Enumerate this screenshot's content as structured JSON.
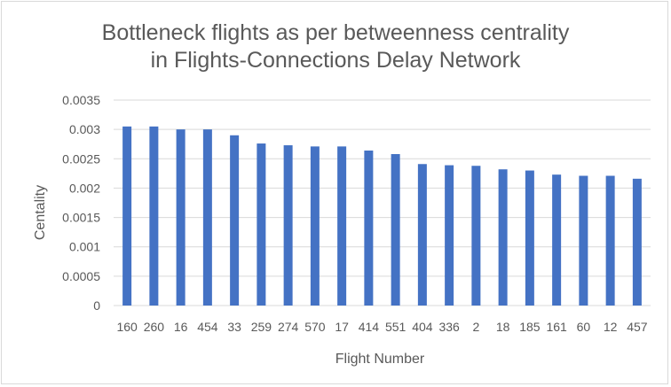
{
  "chart_data": {
    "type": "bar",
    "title_line1": "Bottleneck flights as per betweenness  centrality",
    "title_line2": "in Flights-Connections Delay Network",
    "xlabel": "Flight Number",
    "ylabel": "Centality",
    "categories": [
      "160",
      "260",
      "16",
      "454",
      "33",
      "259",
      "274",
      "570",
      "17",
      "414",
      "551",
      "404",
      "336",
      "2",
      "18",
      "185",
      "161",
      "60",
      "12",
      "457"
    ],
    "values": [
      0.00305,
      0.00305,
      0.003,
      0.003,
      0.0029,
      0.00276,
      0.00273,
      0.00271,
      0.00271,
      0.00264,
      0.00258,
      0.00241,
      0.00239,
      0.00238,
      0.00232,
      0.0023,
      0.00223,
      0.00221,
      0.00221,
      0.00216
    ],
    "y_ticks": [
      "0",
      "0.0005",
      "0.001",
      "0.0015",
      "0.002",
      "0.0025",
      "0.003",
      "0.0035"
    ],
    "ylim": [
      0,
      0.0035
    ],
    "grid": true,
    "bar_color": "#4472c4",
    "grid_color": "#d9d9d9"
  }
}
